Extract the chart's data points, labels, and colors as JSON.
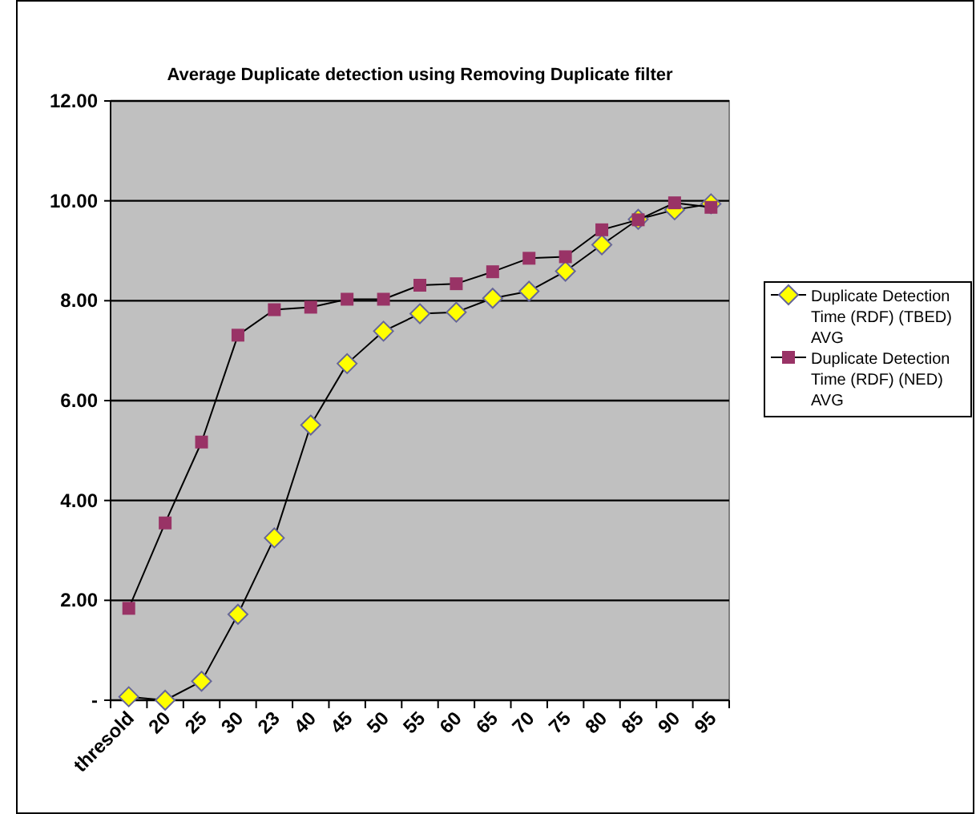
{
  "chart_data": {
    "type": "line",
    "title": "Average Duplicate detection using Removing Duplicate filter",
    "categories": [
      "thresold",
      "20",
      "25",
      "30",
      "23",
      "40",
      "45",
      "50",
      "55",
      "60",
      "65",
      "70",
      "75",
      "80",
      "85",
      "90",
      "95"
    ],
    "series": [
      {
        "name": "Duplicate Detection Time (RDF) (TBED) AVG",
        "color": "#ffff00",
        "marker": "diamond",
        "values": [
          0.07,
          0,
          0.38,
          1.72,
          3.25,
          5.51,
          6.74,
          7.39,
          7.74,
          7.77,
          8.05,
          8.19,
          8.59,
          9.12,
          9.63,
          9.82,
          9.94
        ]
      },
      {
        "name": "Duplicate Detection Time (RDF) (NED) AVG",
        "color": "#993366",
        "marker": "square",
        "values": [
          1.84,
          3.55,
          5.17,
          7.31,
          7.82,
          7.87,
          8.03,
          8.03,
          8.31,
          8.34,
          8.58,
          8.85,
          8.88,
          9.42,
          9.62,
          9.96,
          9.87
        ]
      }
    ],
    "ylim": [
      0,
      12
    ],
    "yticks": [
      {
        "value": 0,
        "label": "-"
      },
      {
        "value": 2,
        "label": "2.00"
      },
      {
        "value": 4,
        "label": "4.00"
      },
      {
        "value": 6,
        "label": "6.00"
      },
      {
        "value": 8,
        "label": "8.00"
      },
      {
        "value": 10,
        "label": "10.00"
      },
      {
        "value": 12,
        "label": "12.00"
      }
    ],
    "grid": "y",
    "legend": "right",
    "line_style": "solid"
  }
}
